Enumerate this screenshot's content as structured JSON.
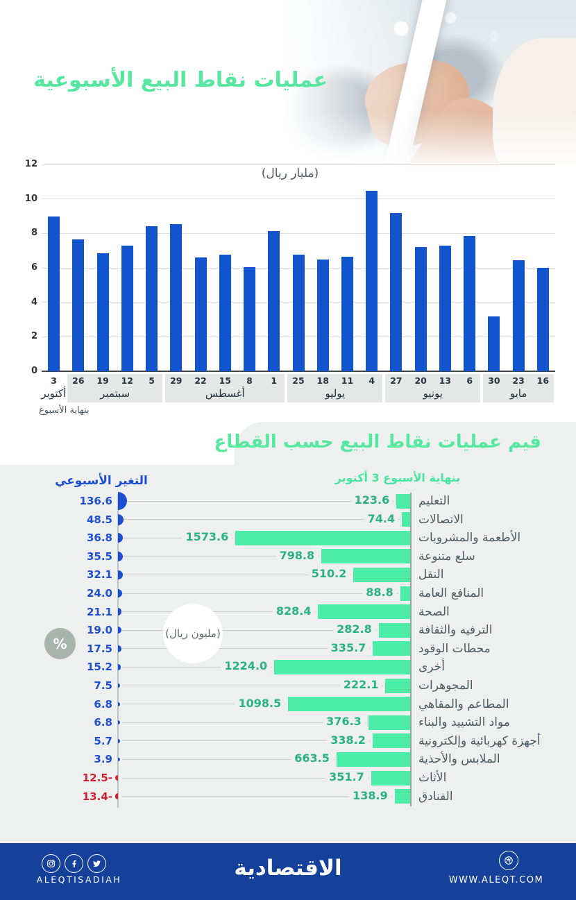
{
  "colors": {
    "title_green": "#57e8a0",
    "bar_blue": "#1254cd",
    "mint_bar": "#4aeca6",
    "value_green": "#29b183",
    "change_blue": "#1c4ecf",
    "change_red": "#d1222f",
    "panel_gray": "#edf0ee",
    "footer_blue": "#15419b"
  },
  "chart_data": [
    {
      "type": "bar",
      "title": "عمليات نقاط البيع الأسبوعية",
      "ylabel": "(مليار ريال)",
      "footnote": "بنهاية الأسبوع",
      "ylim": [
        0,
        12
      ],
      "yticks": [
        0,
        2,
        4,
        6,
        8,
        10,
        12
      ],
      "grid": true,
      "legend_position": "none",
      "categories": [
        "3",
        "26",
        "19",
        "12",
        "5",
        "29",
        "22",
        "15",
        "8",
        "1",
        "25",
        "18",
        "11",
        "4",
        "27",
        "20",
        "13",
        "6",
        "30",
        "23",
        "16"
      ],
      "values": [
        9.0,
        7.65,
        6.85,
        7.3,
        8.4,
        8.55,
        6.6,
        6.75,
        6.05,
        8.15,
        6.75,
        6.5,
        6.65,
        10.45,
        9.2,
        7.2,
        7.3,
        7.85,
        3.2,
        6.45,
        6.0
      ],
      "month_groups": [
        {
          "label": "أكتوبر",
          "span": 1,
          "boxed": false
        },
        {
          "label": "سبتمبر",
          "span": 4,
          "boxed": true
        },
        {
          "label": "أغسطس",
          "span": 5,
          "boxed": true
        },
        {
          "label": "يوليو",
          "span": 4,
          "boxed": true
        },
        {
          "label": "يونيو",
          "span": 4,
          "boxed": true
        },
        {
          "label": "مايو",
          "span": 3,
          "boxed": true
        }
      ]
    },
    {
      "type": "bar",
      "orientation": "horizontal",
      "title": "قيم عمليات نقاط البيع حسب القطاع",
      "subtitle": "بنهاية الأسبوع 3 أكتوبر",
      "value_unit": "(مليون ريال)",
      "change_label": "التغير الأسبوعي",
      "change_unit": "%",
      "rows": [
        {
          "sector": "التعليم",
          "value": 123.6,
          "change": 136.6
        },
        {
          "sector": "الاتصالات",
          "value": 74.4,
          "change": 48.5
        },
        {
          "sector": "الأطعمة والمشروبات",
          "value": 1573.6,
          "change": 36.8
        },
        {
          "sector": "سلع متنوعة",
          "value": 798.8,
          "change": 35.5
        },
        {
          "sector": "النقل",
          "value": 510.2,
          "change": 32.1
        },
        {
          "sector": "المنافع العامة",
          "value": 88.8,
          "change": 24.0
        },
        {
          "sector": "الصحة",
          "value": 828.4,
          "change": 21.1
        },
        {
          "sector": "الترفيه والثقافة",
          "value": 282.8,
          "change": 19.0
        },
        {
          "sector": "محطات الوقود",
          "value": 335.7,
          "change": 17.5
        },
        {
          "sector": "أخرى",
          "value": 1224.0,
          "change": 15.2
        },
        {
          "sector": "المجوهرات",
          "value": 222.1,
          "change": 7.5
        },
        {
          "sector": "المطاعم والمقاهي",
          "value": 1098.5,
          "change": 6.8
        },
        {
          "sector": "مواد التشييد والبناء",
          "value": 376.3,
          "change": 6.8
        },
        {
          "sector": "أجهزة كهربائية وإلكترونية",
          "value": 338.2,
          "change": 5.7
        },
        {
          "sector": "الملابس والأحذية",
          "value": 663.5,
          "change": 3.9
        },
        {
          "sector": "الأثاث",
          "value": 351.7,
          "change": -12.5
        },
        {
          "sector": "الفنادق",
          "value": 138.9,
          "change": -13.4
        }
      ]
    }
  ],
  "footer": {
    "social_handle": "ALEQTISADIAH",
    "logo": "الاقتصادية",
    "website": "WWW.ALEQT.COM"
  }
}
